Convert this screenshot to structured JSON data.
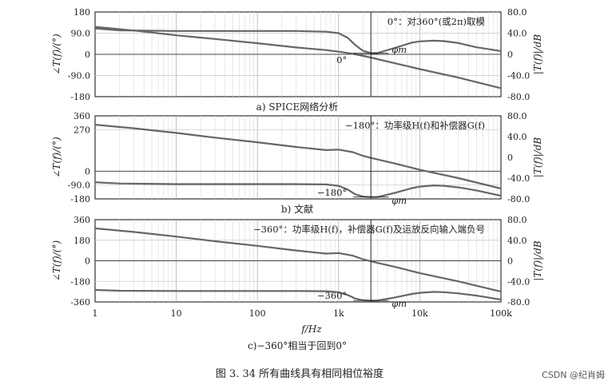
{
  "figure": {
    "caption": "图 3. 34   所有曲线具有相同相位裕度",
    "watermark": "CSDN @纪肖姆",
    "x_axis_label": "f/Hz",
    "x_ticks": [
      "1",
      "10",
      "100",
      "1k",
      "10k",
      "100k"
    ]
  },
  "chart_data": [
    {
      "type": "line",
      "id": "a",
      "subcaption": "a) SPICE网络分析",
      "annotation": "0°：对360°(或2π)取模",
      "marker_label": "0°",
      "pm_label": "φm",
      "ylabel_left": "∠T(f)/(°)",
      "ylabel_right": "|T(f)|/dB",
      "left_ticks": [
        180,
        90.0,
        0,
        -90.0,
        -180
      ],
      "right_ticks": [
        "80.0",
        "40.0",
        "0",
        "-40.0",
        "-80.0"
      ],
      "left_range": [
        -180,
        180
      ],
      "right_range": [
        -80,
        80
      ],
      "x_log_range": [
        1,
        100000
      ],
      "series": [
        {
          "axis": "right",
          "x": [
            1,
            3,
            10,
            30,
            100,
            300,
            700,
            1000,
            1500,
            2000,
            2500,
            3000,
            5000,
            10000,
            30000,
            100000
          ],
          "y": [
            52,
            45,
            36,
            29,
            21,
            13,
            8,
            5,
            1,
            -3,
            -6,
            -9,
            -17,
            -28,
            -44,
            -64
          ]
        },
        {
          "axis": "left",
          "x": [
            1,
            2,
            10,
            100,
            300,
            700,
            1000,
            1300,
            1600,
            2000,
            2500,
            3000,
            5000,
            8000,
            10000,
            15000,
            20000,
            30000,
            50000,
            100000
          ],
          "y": [
            110,
            102,
            99,
            99,
            99,
            96,
            90,
            70,
            40,
            15,
            5,
            5,
            28,
            50,
            55,
            58,
            56,
            48,
            30,
            14
          ]
        }
      ]
    },
    {
      "type": "line",
      "id": "b",
      "subcaption": "b) 文献",
      "annotation": "−180°：功率级H(f)和补偿器G(f)",
      "marker_label": "−180°",
      "pm_label": "φm",
      "ylabel_left": "∠T(f)/(°)",
      "ylabel_right": "|T(f)|/dB",
      "left_ticks": [
        360,
        270,
        0,
        -90,
        -180
      ],
      "right_ticks": [
        "80.0",
        "40.0",
        "0",
        "-40.0",
        "-80.0"
      ],
      "left_range": [
        -180,
        360
      ],
      "right_range": [
        -80,
        80
      ],
      "x_log_range": [
        1,
        100000
      ],
      "series": [
        {
          "axis": "right",
          "x": [
            1,
            3,
            10,
            30,
            100,
            300,
            700,
            1000,
            1500,
            2000,
            2500,
            3000,
            5000,
            10000,
            30000,
            100000
          ],
          "y": [
            63,
            56,
            47,
            38,
            29,
            20,
            14,
            15,
            10,
            3,
            -1,
            -4,
            -12,
            -24,
            -40,
            -60
          ]
        },
        {
          "axis": "left",
          "x": [
            1,
            2,
            10,
            100,
            300,
            700,
            1000,
            1300,
            1600,
            2000,
            2500,
            3000,
            5000,
            8000,
            10000,
            15000,
            20000,
            30000,
            50000,
            100000
          ],
          "y": [
            -72,
            -80,
            -84,
            -84,
            -84,
            -86,
            -95,
            -120,
            -150,
            -165,
            -168,
            -168,
            -140,
            -110,
            -100,
            -92,
            -95,
            -105,
            -125,
            -160
          ]
        }
      ]
    },
    {
      "type": "line",
      "id": "c",
      "subcaption": "c)−360°相当于回到0°",
      "annotation": "−360°：功率级H(f)，补偿器G(f)及运放反向输入端负号",
      "marker_label": "−360°",
      "pm_label": "φm",
      "ylabel_left": "∠T(f)/(°)",
      "ylabel_right": "|T(f)|/dB",
      "left_ticks": [
        360,
        180,
        0,
        -180,
        -360
      ],
      "right_ticks": [
        "80.0",
        "40.0",
        "0",
        "-40.0",
        "-80.0"
      ],
      "left_range": [
        -360,
        360
      ],
      "right_range": [
        -80,
        80
      ],
      "x_log_range": [
        1,
        100000
      ],
      "series": [
        {
          "axis": "right",
          "x": [
            1,
            3,
            10,
            30,
            100,
            300,
            700,
            1000,
            1500,
            2000,
            2500,
            3000,
            5000,
            10000,
            30000,
            100000
          ],
          "y": [
            63,
            56,
            47,
            38,
            29,
            20,
            14,
            15,
            10,
            3,
            -1,
            -4,
            -12,
            -24,
            -40,
            -60
          ]
        },
        {
          "axis": "left",
          "x": [
            1,
            2,
            10,
            100,
            300,
            700,
            1000,
            1300,
            1600,
            2000,
            2500,
            3000,
            5000,
            8000,
            10000,
            15000,
            20000,
            30000,
            50000,
            100000
          ],
          "y": [
            -255,
            -262,
            -264,
            -264,
            -264,
            -266,
            -275,
            -300,
            -330,
            -345,
            -348,
            -348,
            -320,
            -290,
            -280,
            -272,
            -275,
            -285,
            -305,
            -340
          ]
        }
      ]
    }
  ]
}
